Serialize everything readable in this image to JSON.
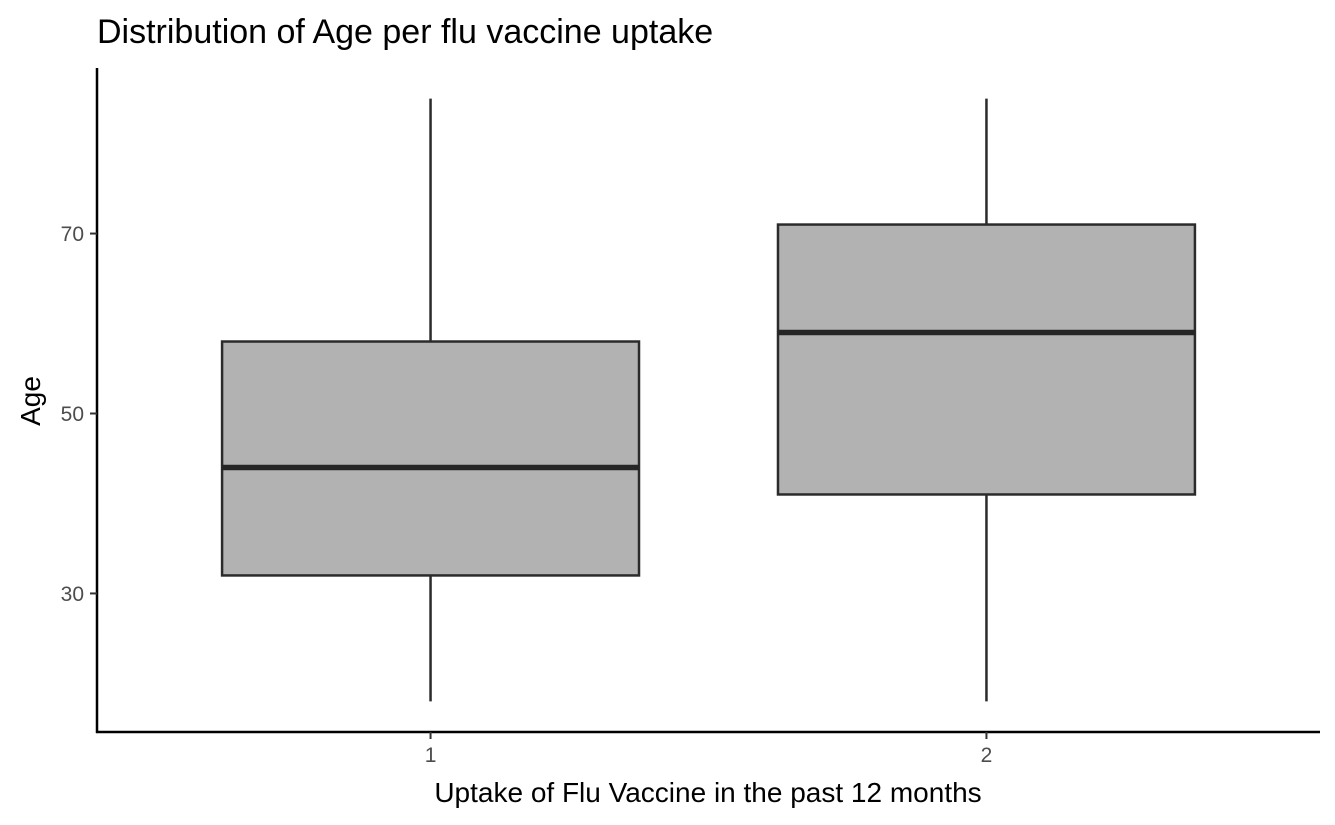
{
  "chart_data": {
    "type": "boxplot",
    "title": "Distribution of Age per flu vaccine uptake",
    "xlabel": "Uptake of Flu Vaccine in the past 12 months",
    "ylabel": "Age",
    "categories": [
      "1",
      "2"
    ],
    "boxes": [
      {
        "category": "1",
        "min": 18,
        "q1": 32,
        "median": 44,
        "q3": 58,
        "max": 85
      },
      {
        "category": "2",
        "min": 18,
        "q1": 41,
        "median": 59,
        "q3": 71,
        "max": 85
      }
    ],
    "yticks": [
      30,
      50,
      70
    ],
    "ylim": [
      14.6,
      88.4
    ],
    "grid": false,
    "legend": "none",
    "colors": {
      "box_fill": "#b2b2b2",
      "box_stroke": "#2b2b2b",
      "median": "#262626"
    }
  }
}
